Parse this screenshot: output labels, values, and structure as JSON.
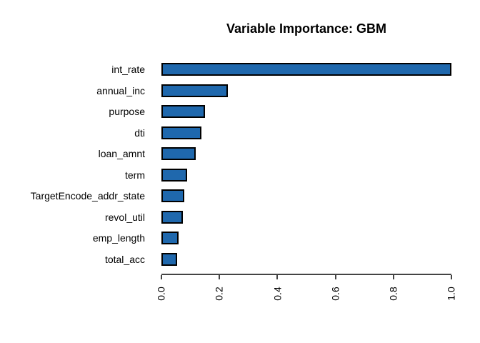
{
  "title": "Variable Importance: GBM",
  "chart_data": {
    "type": "bar",
    "orientation": "horizontal",
    "title": "Variable Importance: GBM",
    "categories": [
      "int_rate",
      "annual_inc",
      "purpose",
      "dti",
      "loan_amnt",
      "term",
      "TargetEncode_addr_state",
      "revol_util",
      "emp_length",
      "total_acc"
    ],
    "values": [
      1.0,
      0.23,
      0.15,
      0.137,
      0.119,
      0.089,
      0.078,
      0.074,
      0.058,
      0.055
    ],
    "xlabel": "",
    "ylabel": "",
    "xlim": [
      0,
      1
    ],
    "x_tick_values": [
      0,
      0.2,
      0.4,
      0.6,
      0.8,
      1.0
    ],
    "x_tick_labels": [
      "0.0",
      "0.2",
      "0.4",
      "0.6",
      "0.8",
      "1.0"
    ],
    "grid": false,
    "legend": "none",
    "colors": {
      "bar_fill": "#1F68AD",
      "bar_border": "#000000",
      "axis": "#444444",
      "text": "#000000",
      "background": "#FFFFFF"
    }
  }
}
